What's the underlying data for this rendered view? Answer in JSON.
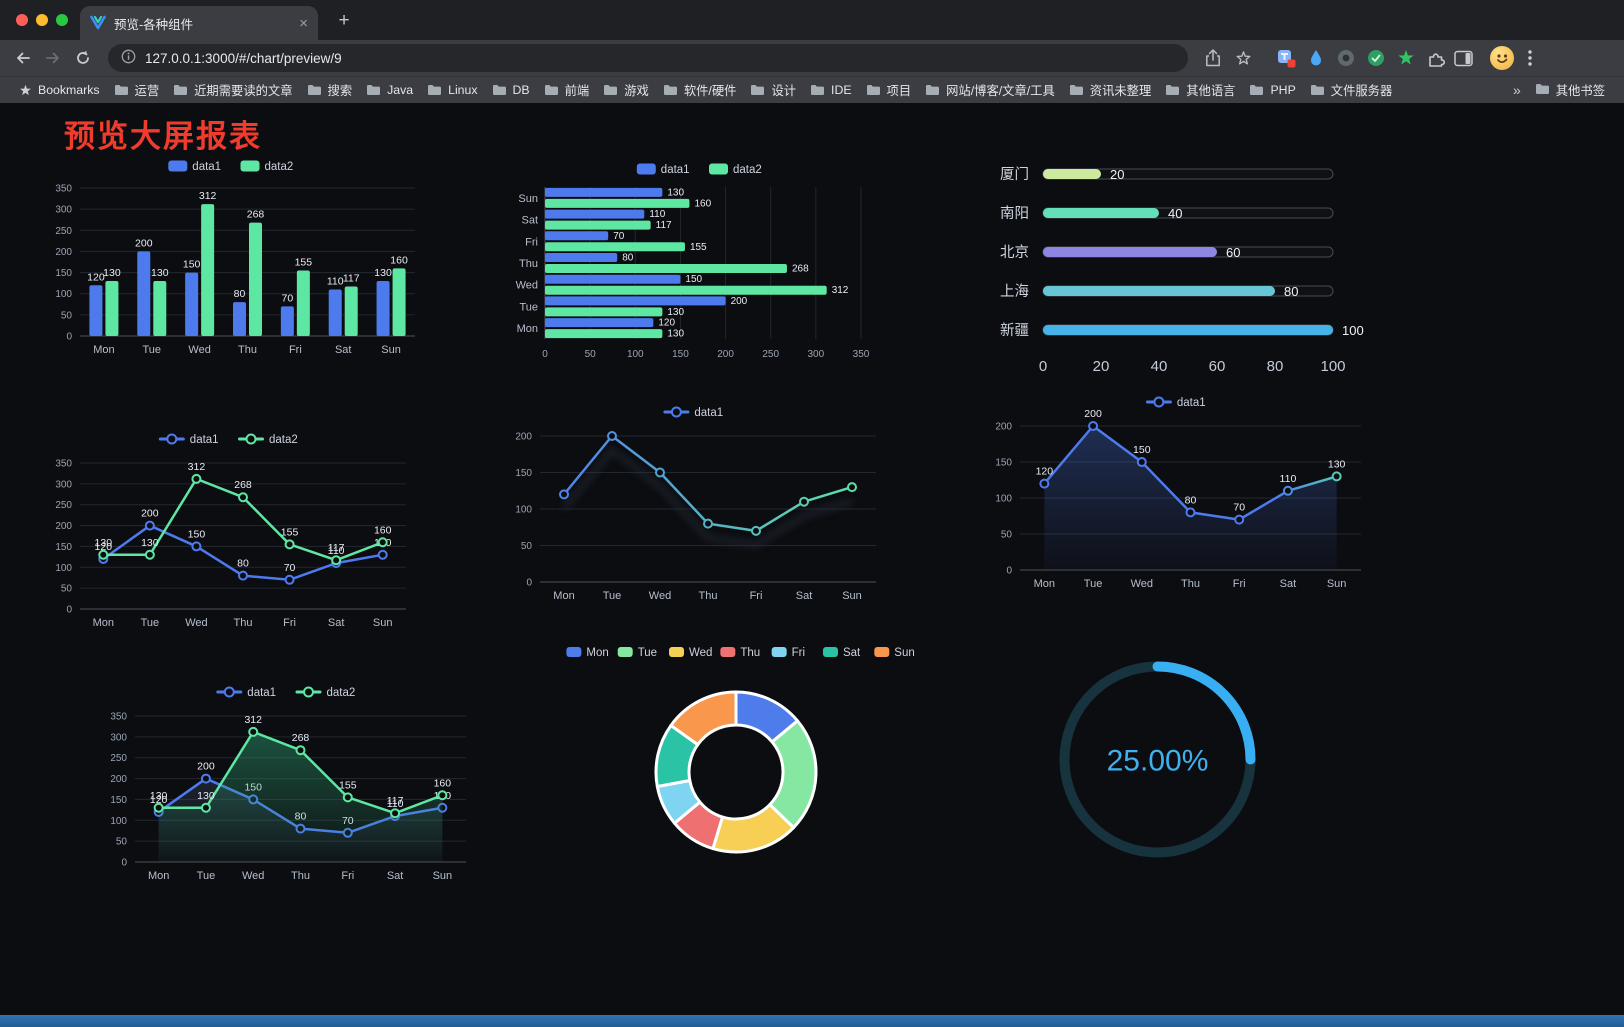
{
  "browser": {
    "tab_title": "预览-各种组件",
    "url": "127.0.0.1:3000/#/chart/preview/9",
    "bookmarks_label": "Bookmarks",
    "bookmarks": [
      "运营",
      "近期需要读的文章",
      "搜索",
      "Java",
      "Linux",
      "DB",
      "前端",
      "游戏",
      "软件/硬件",
      "设计",
      "IDE",
      "项目",
      "网站/博客/文章/工具",
      "资讯未整理",
      "其他语言",
      "PHP",
      "文件服务器"
    ],
    "bookmarks_overflow": "»",
    "other_bookmarks_label": "其他书签"
  },
  "page": {
    "title": "预览大屏报表"
  },
  "chart_data": [
    {
      "type": "bar",
      "categories": [
        "Mon",
        "Tue",
        "Wed",
        "Thu",
        "Fri",
        "Sat",
        "Sun"
      ],
      "series": [
        {
          "name": "data1",
          "color": "#4d7bee",
          "values": [
            120,
            200,
            150,
            80,
            70,
            110,
            130
          ]
        },
        {
          "name": "data2",
          "color": "#5ee7a2",
          "values": [
            130,
            130,
            312,
            268,
            155,
            117,
            160
          ]
        }
      ],
      "ylim": [
        0,
        350
      ],
      "ystep": 50,
      "value_labels": true,
      "legend_position": "top"
    },
    {
      "type": "hbar",
      "categories": [
        "Mon",
        "Tue",
        "Wed",
        "Thu",
        "Fri",
        "Sat",
        "Sun"
      ],
      "series": [
        {
          "name": "data1",
          "color": "#4d7bee",
          "values": [
            120,
            200,
            150,
            80,
            70,
            110,
            130
          ]
        },
        {
          "name": "data2",
          "color": "#5ee7a2",
          "values": [
            130,
            130,
            312,
            268,
            155,
            117,
            160
          ]
        }
      ],
      "xlim": [
        0,
        350
      ],
      "xstep": 50,
      "value_labels": true,
      "legend_position": "top"
    },
    {
      "type": "progress",
      "items": [
        {
          "label": "厦门",
          "value": 20,
          "color": "#cdea9f"
        },
        {
          "label": "南阳",
          "value": 40,
          "color": "#63dfba"
        },
        {
          "label": "北京",
          "value": 60,
          "color": "#8f85e2"
        },
        {
          "label": "上海",
          "value": 80,
          "color": "#67c6d6"
        },
        {
          "label": "新疆",
          "value": 100,
          "color": "#45b2e8"
        }
      ],
      "xlim": [
        0,
        100
      ],
      "xticks": [
        0,
        20,
        40,
        60,
        80,
        100
      ]
    },
    {
      "type": "line",
      "categories": [
        "Mon",
        "Tue",
        "Wed",
        "Thu",
        "Fri",
        "Sat",
        "Sun"
      ],
      "series": [
        {
          "name": "data1",
          "color": "#4d7bee",
          "values": [
            120,
            200,
            150,
            80,
            70,
            110,
            130
          ]
        },
        {
          "name": "data2",
          "color": "#5ee7a2",
          "values": [
            130,
            130,
            312,
            268,
            155,
            117,
            160
          ]
        }
      ],
      "ylim": [
        0,
        350
      ],
      "ystep": 50,
      "value_labels": true,
      "legend_position": "top"
    },
    {
      "type": "line",
      "categories": [
        "Mon",
        "Tue",
        "Wed",
        "Thu",
        "Fri",
        "Sat",
        "Sun"
      ],
      "series": [
        {
          "name": "data1",
          "values": [
            120,
            200,
            150,
            80,
            70,
            110,
            130
          ],
          "gradient": [
            [
              0,
              "#4d7bee"
            ],
            [
              1,
              "#5ee7a2"
            ]
          ]
        }
      ],
      "ylim": [
        0,
        200
      ],
      "ystep": 50,
      "value_labels": false,
      "shadow": true,
      "legend_position": "top"
    },
    {
      "type": "line",
      "categories": [
        "Mon",
        "Tue",
        "Wed",
        "Thu",
        "Fri",
        "Sat",
        "Sun"
      ],
      "series": [
        {
          "name": "data1",
          "color": "#4d7bee",
          "values": [
            120,
            200,
            150,
            80,
            70,
            110,
            130
          ],
          "area": true,
          "area_opacity": 0.3,
          "gradient": [
            [
              0,
              "#4d7bee"
            ],
            [
              0.75,
              "#4d7bee"
            ],
            [
              1,
              "#5ee7a2"
            ]
          ]
        }
      ],
      "ylim": [
        0,
        200
      ],
      "ystep": 50,
      "value_labels": true,
      "legend_position": "top"
    },
    {
      "type": "line",
      "categories": [
        "Mon",
        "Tue",
        "Wed",
        "Thu",
        "Fri",
        "Sat",
        "Sun"
      ],
      "series": [
        {
          "name": "data1",
          "color": "#4d7bee",
          "values": [
            120,
            200,
            150,
            80,
            70,
            110,
            130
          ],
          "area": true,
          "area_color": "#5b749e",
          "area_opacity": 0.35
        },
        {
          "name": "data2",
          "color": "#5ee7a2",
          "values": [
            130,
            130,
            312,
            268,
            155,
            117,
            160
          ],
          "area": true,
          "area_color": "#2fa876",
          "area_opacity": 0.5
        }
      ],
      "ylim": [
        0,
        350
      ],
      "ystep": 50,
      "value_labels": true,
      "legend_position": "top"
    },
    {
      "type": "doughnut",
      "items": [
        {
          "label": "Mon",
          "value": 120,
          "color": "#4e7ceb"
        },
        {
          "label": "Tue",
          "value": 200,
          "color": "#85e7a1"
        },
        {
          "label": "Wed",
          "value": 150,
          "color": "#f6cf54"
        },
        {
          "label": "Thu",
          "value": 80,
          "color": "#ee7070"
        },
        {
          "label": "Fri",
          "value": 70,
          "color": "#7fd4f2"
        },
        {
          "label": "Sat",
          "value": 110,
          "color": "#2ac3a6"
        },
        {
          "label": "Sun",
          "value": 130,
          "color": "#f9984d"
        }
      ],
      "legend_position": "top"
    },
    {
      "type": "gauge",
      "value": 25,
      "text": "25.00%",
      "color": "#38aef3",
      "track_color": "#16333e",
      "text_color": "#3fb0f0"
    }
  ]
}
